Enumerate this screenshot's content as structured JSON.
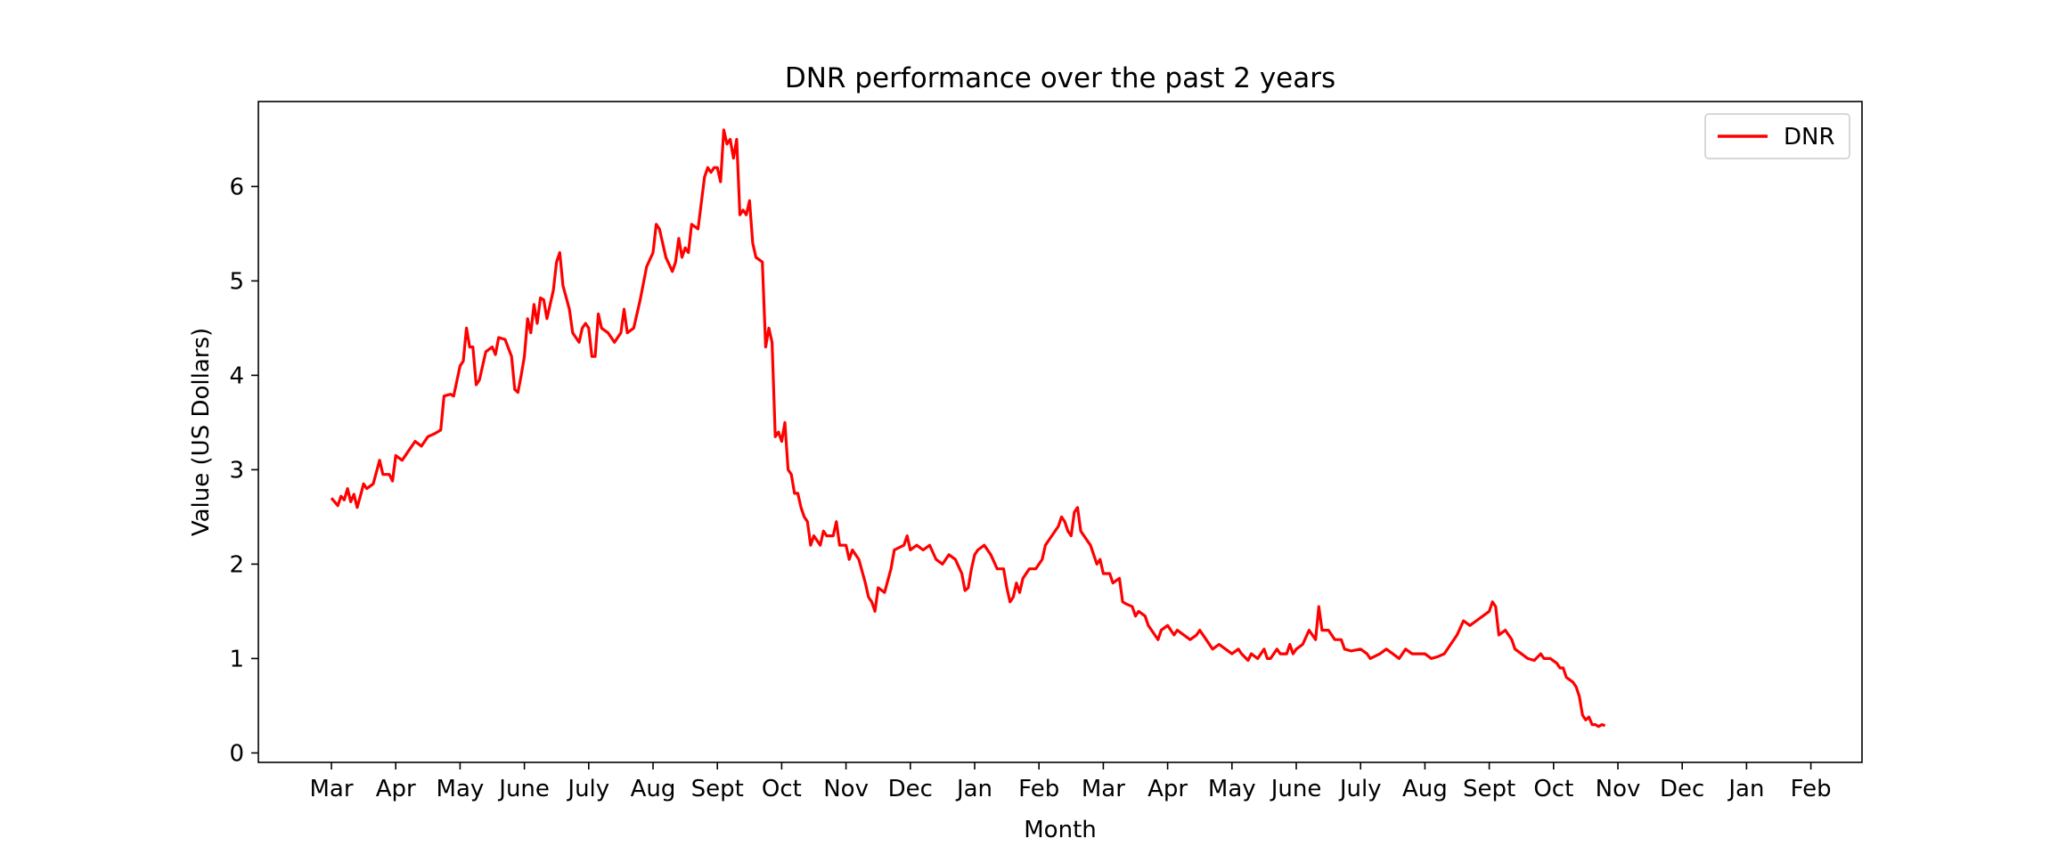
{
  "chart_data": {
    "type": "line",
    "title": "DNR performance over the past 2 years",
    "xlabel": "Month",
    "ylabel": "Value (US Dollars)",
    "ylim": [
      -0.1,
      6.9
    ],
    "yticks": [
      0,
      1,
      2,
      3,
      4,
      5,
      6
    ],
    "x_months": [
      "Mar",
      "Apr",
      "May",
      "June",
      "July",
      "Aug",
      "Sept",
      "Oct",
      "Nov",
      "Dec",
      "Jan",
      "Feb",
      "Mar",
      "Apr",
      "May",
      "June",
      "July",
      "Aug",
      "Sept",
      "Oct",
      "Nov",
      "Dec",
      "Jan",
      "Feb"
    ],
    "grid": false,
    "legend": {
      "position": "top-right",
      "entries": [
        "DNR"
      ]
    },
    "series": [
      {
        "name": "DNR",
        "color": "#ff0000",
        "points": [
          [
            0.0,
            2.7
          ],
          [
            0.1,
            2.62
          ],
          [
            0.15,
            2.72
          ],
          [
            0.2,
            2.68
          ],
          [
            0.25,
            2.8
          ],
          [
            0.3,
            2.66
          ],
          [
            0.35,
            2.74
          ],
          [
            0.4,
            2.6
          ],
          [
            0.45,
            2.72
          ],
          [
            0.5,
            2.85
          ],
          [
            0.55,
            2.8
          ],
          [
            0.65,
            2.85
          ],
          [
            0.75,
            3.1
          ],
          [
            0.8,
            2.95
          ],
          [
            0.9,
            2.95
          ],
          [
            0.95,
            2.88
          ],
          [
            1.0,
            3.15
          ],
          [
            1.1,
            3.1
          ],
          [
            1.2,
            3.2
          ],
          [
            1.3,
            3.3
          ],
          [
            1.4,
            3.25
          ],
          [
            1.5,
            3.35
          ],
          [
            1.6,
            3.38
          ],
          [
            1.7,
            3.42
          ],
          [
            1.75,
            3.78
          ],
          [
            1.85,
            3.8
          ],
          [
            1.9,
            3.78
          ],
          [
            2.0,
            4.1
          ],
          [
            2.05,
            4.15
          ],
          [
            2.1,
            4.5
          ],
          [
            2.15,
            4.3
          ],
          [
            2.2,
            4.3
          ],
          [
            2.25,
            3.9
          ],
          [
            2.3,
            3.95
          ],
          [
            2.4,
            4.25
          ],
          [
            2.5,
            4.3
          ],
          [
            2.55,
            4.22
          ],
          [
            2.6,
            4.4
          ],
          [
            2.7,
            4.38
          ],
          [
            2.8,
            4.2
          ],
          [
            2.85,
            3.85
          ],
          [
            2.9,
            3.82
          ],
          [
            2.95,
            4.0
          ],
          [
            3.0,
            4.2
          ],
          [
            3.05,
            4.6
          ],
          [
            3.1,
            4.45
          ],
          [
            3.15,
            4.75
          ],
          [
            3.2,
            4.55
          ],
          [
            3.25,
            4.82
          ],
          [
            3.3,
            4.8
          ],
          [
            3.35,
            4.6
          ],
          [
            3.4,
            4.75
          ],
          [
            3.45,
            4.9
          ],
          [
            3.5,
            5.2
          ],
          [
            3.55,
            5.3
          ],
          [
            3.6,
            4.95
          ],
          [
            3.7,
            4.7
          ],
          [
            3.75,
            4.45
          ],
          [
            3.8,
            4.4
          ],
          [
            3.85,
            4.35
          ],
          [
            3.9,
            4.5
          ],
          [
            3.95,
            4.55
          ],
          [
            4.0,
            4.5
          ],
          [
            4.05,
            4.2
          ],
          [
            4.1,
            4.2
          ],
          [
            4.15,
            4.65
          ],
          [
            4.2,
            4.5
          ],
          [
            4.3,
            4.45
          ],
          [
            4.4,
            4.35
          ],
          [
            4.5,
            4.45
          ],
          [
            4.55,
            4.7
          ],
          [
            4.6,
            4.45
          ],
          [
            4.7,
            4.5
          ],
          [
            4.8,
            4.8
          ],
          [
            4.9,
            5.15
          ],
          [
            5.0,
            5.3
          ],
          [
            5.05,
            5.6
          ],
          [
            5.1,
            5.55
          ],
          [
            5.15,
            5.4
          ],
          [
            5.2,
            5.25
          ],
          [
            5.3,
            5.1
          ],
          [
            5.35,
            5.2
          ],
          [
            5.4,
            5.45
          ],
          [
            5.45,
            5.25
          ],
          [
            5.5,
            5.35
          ],
          [
            5.55,
            5.3
          ],
          [
            5.6,
            5.6
          ],
          [
            5.7,
            5.55
          ],
          [
            5.8,
            6.1
          ],
          [
            5.85,
            6.2
          ],
          [
            5.9,
            6.15
          ],
          [
            5.95,
            6.2
          ],
          [
            6.0,
            6.2
          ],
          [
            6.05,
            6.05
          ],
          [
            6.1,
            6.6
          ],
          [
            6.15,
            6.45
          ],
          [
            6.2,
            6.5
          ],
          [
            6.25,
            6.3
          ],
          [
            6.3,
            6.5
          ],
          [
            6.35,
            5.7
          ],
          [
            6.4,
            5.75
          ],
          [
            6.45,
            5.7
          ],
          [
            6.5,
            5.85
          ],
          [
            6.55,
            5.4
          ],
          [
            6.6,
            5.25
          ],
          [
            6.7,
            5.2
          ],
          [
            6.75,
            4.3
          ],
          [
            6.8,
            4.5
          ],
          [
            6.85,
            4.35
          ],
          [
            6.9,
            3.35
          ],
          [
            6.95,
            3.4
          ],
          [
            7.0,
            3.3
          ],
          [
            7.05,
            3.5
          ],
          [
            7.1,
            3.0
          ],
          [
            7.15,
            2.95
          ],
          [
            7.2,
            2.75
          ],
          [
            7.25,
            2.75
          ],
          [
            7.3,
            2.6
          ],
          [
            7.35,
            2.5
          ],
          [
            7.4,
            2.45
          ],
          [
            7.45,
            2.2
          ],
          [
            7.5,
            2.3
          ],
          [
            7.6,
            2.2
          ],
          [
            7.65,
            2.35
          ],
          [
            7.7,
            2.3
          ],
          [
            7.8,
            2.3
          ],
          [
            7.85,
            2.45
          ],
          [
            7.9,
            2.2
          ],
          [
            8.0,
            2.2
          ],
          [
            8.05,
            2.05
          ],
          [
            8.1,
            2.15
          ],
          [
            8.2,
            2.05
          ],
          [
            8.3,
            1.8
          ],
          [
            8.35,
            1.65
          ],
          [
            8.4,
            1.6
          ],
          [
            8.45,
            1.5
          ],
          [
            8.5,
            1.75
          ],
          [
            8.6,
            1.7
          ],
          [
            8.7,
            1.95
          ],
          [
            8.75,
            2.15
          ],
          [
            8.9,
            2.2
          ],
          [
            8.95,
            2.3
          ],
          [
            9.0,
            2.15
          ],
          [
            9.1,
            2.2
          ],
          [
            9.2,
            2.15
          ],
          [
            9.3,
            2.2
          ],
          [
            9.4,
            2.05
          ],
          [
            9.5,
            2.0
          ],
          [
            9.55,
            2.05
          ],
          [
            9.6,
            2.1
          ],
          [
            9.7,
            2.05
          ],
          [
            9.8,
            1.9
          ],
          [
            9.85,
            1.72
          ],
          [
            9.9,
            1.75
          ],
          [
            9.95,
            1.95
          ],
          [
            10.0,
            2.1
          ],
          [
            10.05,
            2.15
          ],
          [
            10.15,
            2.2
          ],
          [
            10.25,
            2.1
          ],
          [
            10.35,
            1.95
          ],
          [
            10.45,
            1.95
          ],
          [
            10.5,
            1.75
          ],
          [
            10.55,
            1.6
          ],
          [
            10.6,
            1.65
          ],
          [
            10.65,
            1.8
          ],
          [
            10.7,
            1.7
          ],
          [
            10.75,
            1.85
          ],
          [
            10.85,
            1.95
          ],
          [
            10.95,
            1.95
          ],
          [
            11.0,
            2.0
          ],
          [
            11.05,
            2.05
          ],
          [
            11.1,
            2.2
          ],
          [
            11.2,
            2.3
          ],
          [
            11.3,
            2.4
          ],
          [
            11.35,
            2.5
          ],
          [
            11.4,
            2.45
          ],
          [
            11.45,
            2.35
          ],
          [
            11.5,
            2.3
          ],
          [
            11.55,
            2.55
          ],
          [
            11.6,
            2.6
          ],
          [
            11.65,
            2.35
          ],
          [
            11.7,
            2.3
          ],
          [
            11.8,
            2.2
          ],
          [
            11.9,
            2.0
          ],
          [
            11.95,
            2.05
          ],
          [
            12.0,
            1.9
          ],
          [
            12.1,
            1.9
          ],
          [
            12.15,
            1.8
          ],
          [
            12.25,
            1.85
          ],
          [
            12.3,
            1.6
          ],
          [
            12.35,
            1.58
          ],
          [
            12.45,
            1.55
          ],
          [
            12.5,
            1.45
          ],
          [
            12.55,
            1.5
          ],
          [
            12.65,
            1.45
          ],
          [
            12.7,
            1.35
          ],
          [
            12.8,
            1.25
          ],
          [
            12.85,
            1.2
          ],
          [
            12.9,
            1.3
          ],
          [
            13.0,
            1.35
          ],
          [
            13.1,
            1.25
          ],
          [
            13.15,
            1.3
          ],
          [
            13.25,
            1.25
          ],
          [
            13.35,
            1.2
          ],
          [
            13.45,
            1.25
          ],
          [
            13.5,
            1.3
          ],
          [
            13.6,
            1.2
          ],
          [
            13.7,
            1.1
          ],
          [
            13.8,
            1.15
          ],
          [
            13.9,
            1.1
          ],
          [
            14.0,
            1.05
          ],
          [
            14.1,
            1.1
          ],
          [
            14.15,
            1.05
          ],
          [
            14.25,
            0.98
          ],
          [
            14.3,
            1.05
          ],
          [
            14.4,
            1.0
          ],
          [
            14.5,
            1.1
          ],
          [
            14.55,
            1.0
          ],
          [
            14.6,
            1.0
          ],
          [
            14.7,
            1.1
          ],
          [
            14.75,
            1.05
          ],
          [
            14.85,
            1.05
          ],
          [
            14.9,
            1.15
          ],
          [
            14.95,
            1.05
          ],
          [
            15.0,
            1.1
          ],
          [
            15.1,
            1.15
          ],
          [
            15.2,
            1.3
          ],
          [
            15.25,
            1.25
          ],
          [
            15.3,
            1.2
          ],
          [
            15.35,
            1.55
          ],
          [
            15.4,
            1.3
          ],
          [
            15.5,
            1.3
          ],
          [
            15.6,
            1.2
          ],
          [
            15.7,
            1.2
          ],
          [
            15.75,
            1.1
          ],
          [
            15.85,
            1.08
          ],
          [
            16.0,
            1.1
          ],
          [
            16.1,
            1.05
          ],
          [
            16.15,
            1.0
          ],
          [
            16.3,
            1.05
          ],
          [
            16.4,
            1.1
          ],
          [
            16.5,
            1.05
          ],
          [
            16.6,
            1.0
          ],
          [
            16.7,
            1.1
          ],
          [
            16.8,
            1.05
          ],
          [
            17.0,
            1.05
          ],
          [
            17.1,
            1.0
          ],
          [
            17.2,
            1.02
          ],
          [
            17.3,
            1.05
          ],
          [
            17.4,
            1.15
          ],
          [
            17.5,
            1.25
          ],
          [
            17.6,
            1.4
          ],
          [
            17.7,
            1.35
          ],
          [
            17.8,
            1.4
          ],
          [
            17.9,
            1.45
          ],
          [
            18.0,
            1.5
          ],
          [
            18.05,
            1.6
          ],
          [
            18.1,
            1.55
          ],
          [
            18.15,
            1.25
          ],
          [
            18.25,
            1.3
          ],
          [
            18.35,
            1.2
          ],
          [
            18.4,
            1.1
          ],
          [
            18.5,
            1.05
          ],
          [
            18.6,
            1.0
          ],
          [
            18.7,
            0.98
          ],
          [
            18.8,
            1.05
          ],
          [
            18.85,
            1.0
          ],
          [
            18.95,
            1.0
          ],
          [
            19.05,
            0.95
          ],
          [
            19.1,
            0.9
          ],
          [
            19.15,
            0.9
          ],
          [
            19.2,
            0.8
          ],
          [
            19.3,
            0.75
          ],
          [
            19.35,
            0.7
          ],
          [
            19.4,
            0.6
          ],
          [
            19.45,
            0.4
          ],
          [
            19.5,
            0.35
          ],
          [
            19.55,
            0.38
          ],
          [
            19.6,
            0.3
          ],
          [
            19.65,
            0.3
          ],
          [
            19.7,
            0.28
          ],
          [
            19.75,
            0.3
          ],
          [
            19.8,
            0.29
          ]
        ]
      }
    ]
  }
}
